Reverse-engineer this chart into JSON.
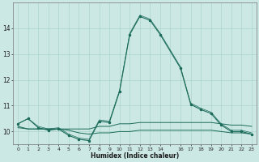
{
  "xlabel": "Humidex (Indice chaleur)",
  "ylabel": "",
  "background_color": "#cce8e4",
  "grid_color": "#aad4cc",
  "line_color": "#1a6b5a",
  "xlim": [
    -0.5,
    23.5
  ],
  "ylim": [
    9.5,
    15.0
  ],
  "yticks": [
    10,
    11,
    12,
    13,
    14
  ],
  "xtick_positions": [
    0,
    1,
    2,
    3,
    4,
    5,
    6,
    7,
    8,
    9,
    10,
    11,
    12,
    13,
    14,
    15,
    16,
    17,
    18,
    19,
    20,
    21,
    22,
    23
  ],
  "xtick_labels": [
    "0",
    "1",
    "2",
    "3",
    "4",
    "5",
    "6",
    "7",
    "8",
    "9",
    "10",
    "11",
    "12",
    "13",
    "14",
    "",
    "16",
    "17",
    "18",
    "19",
    "20",
    "21",
    "22",
    "23"
  ],
  "line1_x": [
    0,
    1,
    2,
    3,
    4,
    5,
    6,
    7,
    8,
    9,
    10,
    11,
    12,
    13,
    14,
    16,
    17,
    18,
    19,
    20,
    21,
    22,
    23
  ],
  "line1_y": [
    10.3,
    10.5,
    10.15,
    10.05,
    10.1,
    9.85,
    9.7,
    9.65,
    10.4,
    10.35,
    11.55,
    13.75,
    14.45,
    14.3,
    13.75,
    12.45,
    11.05,
    10.85,
    10.7,
    10.25,
    10.0,
    10.0,
    9.9
  ],
  "line2_x": [
    0,
    1,
    2,
    3,
    4,
    5,
    6,
    7,
    8,
    9,
    10,
    11,
    12,
    13,
    14,
    16,
    17,
    18,
    19,
    20,
    21,
    22,
    23
  ],
  "line2_y": [
    10.2,
    10.1,
    10.1,
    10.1,
    10.1,
    10.1,
    10.1,
    10.1,
    10.2,
    10.2,
    10.3,
    10.3,
    10.35,
    10.35,
    10.35,
    10.35,
    10.35,
    10.35,
    10.35,
    10.3,
    10.25,
    10.25,
    10.2
  ],
  "line3_x": [
    0,
    1,
    2,
    3,
    4,
    5,
    6,
    7,
    8,
    9,
    10,
    11,
    12,
    13,
    14,
    16,
    17,
    18,
    19,
    20,
    21,
    22,
    23
  ],
  "line3_y": [
    10.15,
    10.1,
    10.1,
    10.1,
    10.1,
    10.05,
    9.95,
    9.9,
    9.95,
    9.95,
    10.0,
    10.0,
    10.05,
    10.05,
    10.05,
    10.05,
    10.05,
    10.05,
    10.05,
    10.0,
    9.95,
    9.95,
    9.9
  ],
  "line4_x": [
    0,
    1,
    2,
    3,
    4,
    5,
    6,
    7,
    8,
    9,
    10,
    11,
    12,
    13,
    14,
    16,
    17,
    18,
    19,
    20,
    21,
    22,
    23
  ],
  "line4_y": [
    10.3,
    10.5,
    10.2,
    10.1,
    10.15,
    9.9,
    9.75,
    9.7,
    10.45,
    10.4,
    11.6,
    13.8,
    14.5,
    14.35,
    13.8,
    12.5,
    11.1,
    10.9,
    10.75,
    10.3,
    10.05,
    10.05,
    9.95
  ]
}
